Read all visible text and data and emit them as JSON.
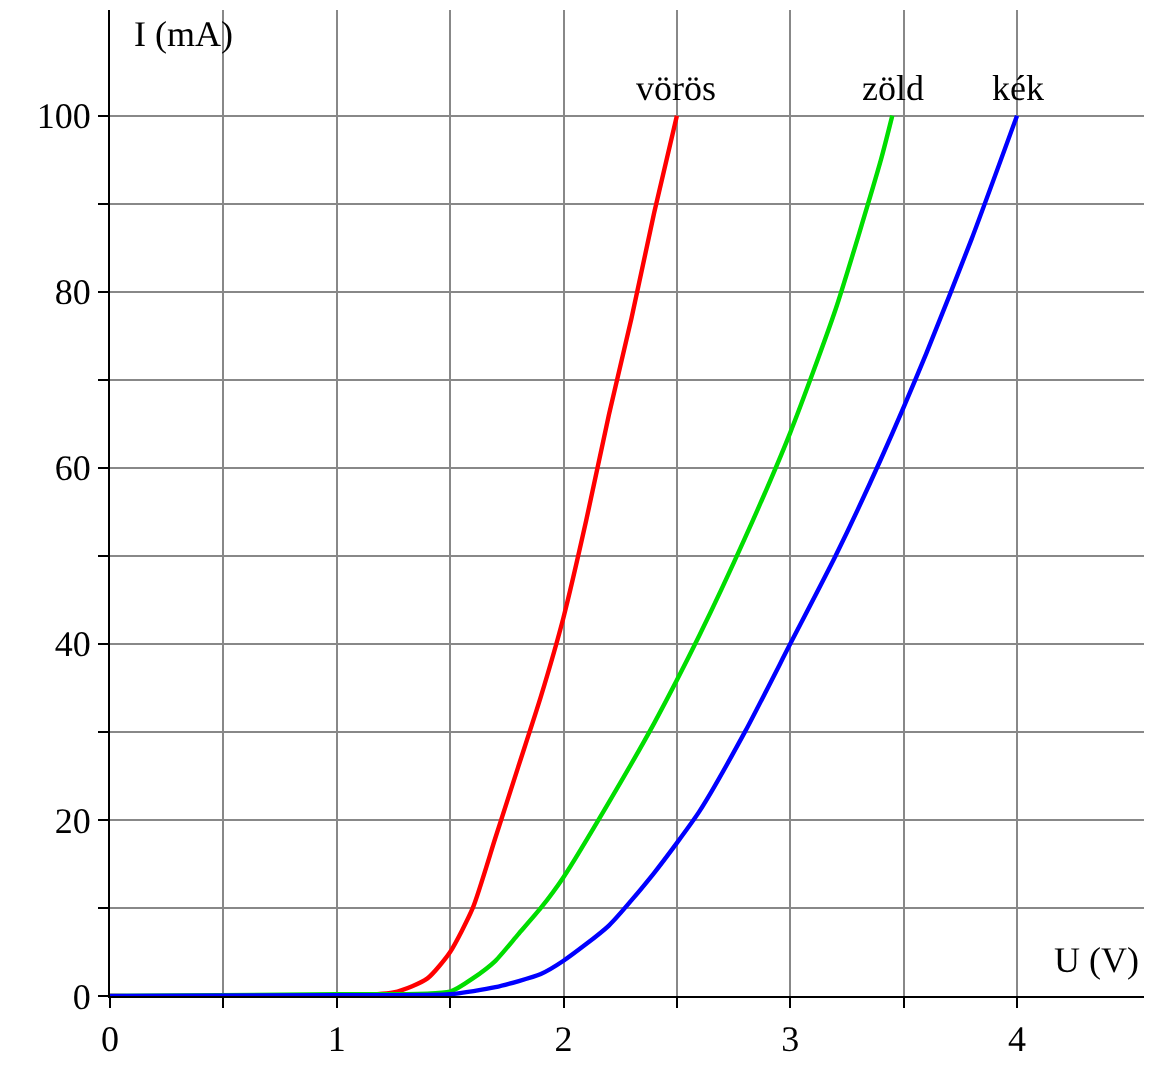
{
  "chart_data": {
    "type": "line",
    "xlabel": "U (V)",
    "ylabel": "I (mA)",
    "xlim": [
      0,
      4.56
    ],
    "ylim": [
      0,
      112
    ],
    "xticks": [
      0,
      {
        "value": 0.5,
        "label": null
      },
      1,
      {
        "value": 1.5,
        "label": null
      },
      2,
      {
        "value": 2.5,
        "label": null
      },
      3,
      {
        "value": 3.5,
        "label": null
      },
      4
    ],
    "yticks": [
      0,
      {
        "value": 10,
        "label": null
      },
      20,
      {
        "value": 30,
        "label": null
      },
      40,
      {
        "value": 50,
        "label": null
      },
      60,
      {
        "value": 70,
        "label": null
      },
      80,
      {
        "value": 90,
        "label": null
      },
      100
    ],
    "grid": true,
    "legend": false,
    "marker": "none",
    "line_style": "solid",
    "series": [
      {
        "name": "vörös",
        "color": "#ff0000",
        "x": [
          0,
          1.25,
          1.4,
          1.5,
          1.6,
          1.7,
          1.8,
          1.9,
          2.0,
          2.1,
          2.2,
          2.3,
          2.4,
          2.5
        ],
        "values": [
          0,
          0.4,
          2,
          5,
          10,
          18,
          26,
          34,
          43,
          54,
          66,
          77,
          89,
          100
        ]
      },
      {
        "name": "zöld",
        "color": "#00dd00",
        "x": [
          0,
          1,
          1.5,
          1.6,
          1.7,
          1.8,
          1.9,
          2.0,
          2.2,
          2.4,
          2.6,
          2.8,
          3.0,
          3.2,
          3.4,
          3.45
        ],
        "values": [
          0,
          0.2,
          0.5,
          2,
          4,
          7,
          10,
          13.5,
          22,
          31,
          41,
          52,
          64,
          78,
          95,
          100
        ]
      },
      {
        "name": "kék",
        "color": "#0000ff",
        "x": [
          0,
          1,
          1.5,
          1.7,
          1.9,
          2.0,
          2.2,
          2.4,
          2.6,
          2.8,
          3.0,
          3.2,
          3.4,
          3.6,
          3.8,
          4.0
        ],
        "values": [
          0,
          0.1,
          0.2,
          1,
          2.5,
          4,
          8,
          14,
          21,
          30,
          40,
          50,
          61,
          73,
          86,
          100
        ]
      }
    ]
  }
}
